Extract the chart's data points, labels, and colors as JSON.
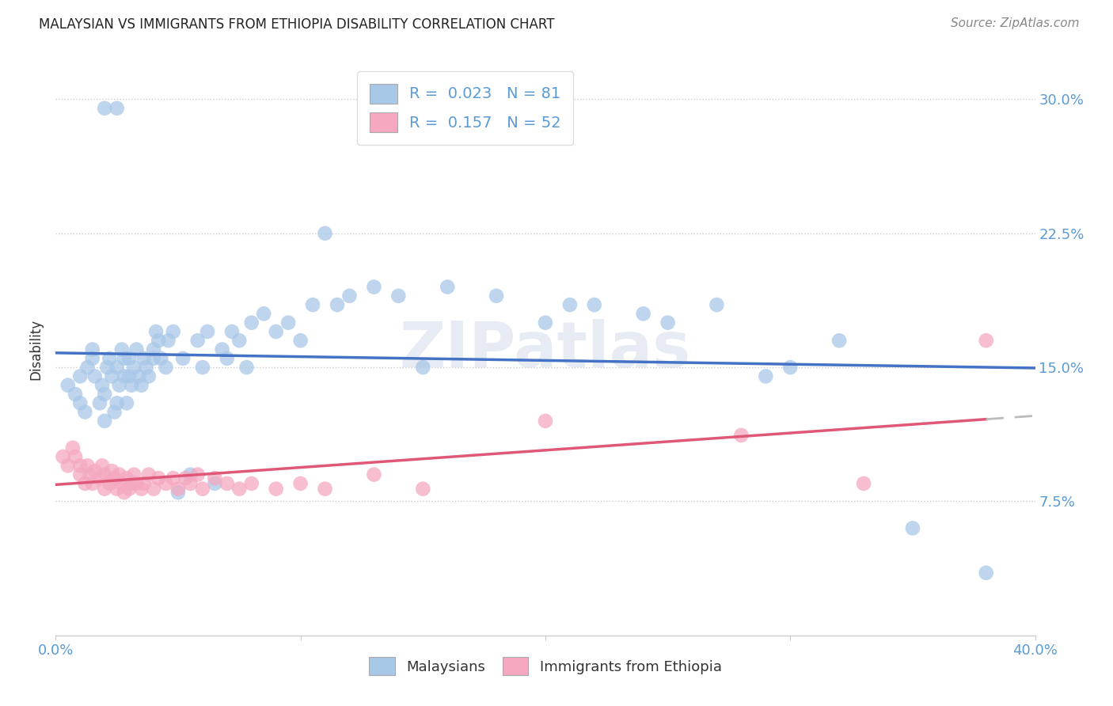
{
  "title": "MALAYSIAN VS IMMIGRANTS FROM ETHIOPIA DISABILITY CORRELATION CHART",
  "source": "Source: ZipAtlas.com",
  "ylabel": "Disability",
  "xlim": [
    0.0,
    0.4
  ],
  "ylim": [
    0.0,
    0.32
  ],
  "yticks": [
    0.075,
    0.15,
    0.225,
    0.3
  ],
  "ytick_labels": [
    "7.5%",
    "15.0%",
    "22.5%",
    "30.0%"
  ],
  "xticks": [
    0.0,
    0.1,
    0.2,
    0.3,
    0.4
  ],
  "xtick_labels": [
    "0.0%",
    "",
    "",
    "",
    "40.0%"
  ],
  "color_blue": "#A8C8E8",
  "color_pink": "#F5A8C0",
  "line_blue": "#4472C4",
  "line_pink": "#E05878",
  "watermark": "ZIPatlas",
  "malaysians_x": [
    0.005,
    0.008,
    0.01,
    0.01,
    0.012,
    0.013,
    0.015,
    0.015,
    0.016,
    0.018,
    0.019,
    0.02,
    0.02,
    0.021,
    0.022,
    0.023,
    0.024,
    0.025,
    0.025,
    0.026,
    0.027,
    0.028,
    0.028,
    0.029,
    0.03,
    0.03,
    0.031,
    0.032,
    0.033,
    0.034,
    0.035,
    0.036,
    0.037,
    0.038,
    0.04,
    0.04,
    0.041,
    0.042,
    0.043,
    0.045,
    0.046,
    0.048,
    0.05,
    0.052,
    0.055,
    0.058,
    0.06,
    0.062,
    0.065,
    0.068,
    0.07,
    0.072,
    0.075,
    0.078,
    0.08,
    0.085,
    0.09,
    0.095,
    0.1,
    0.105,
    0.11,
    0.115,
    0.12,
    0.13,
    0.14,
    0.15,
    0.16,
    0.18,
    0.2,
    0.21,
    0.22,
    0.24,
    0.25,
    0.27,
    0.29,
    0.3,
    0.32,
    0.35,
    0.38,
    0.025,
    0.02
  ],
  "malaysians_y": [
    0.14,
    0.135,
    0.13,
    0.145,
    0.125,
    0.15,
    0.155,
    0.16,
    0.145,
    0.13,
    0.14,
    0.12,
    0.135,
    0.15,
    0.155,
    0.145,
    0.125,
    0.13,
    0.15,
    0.14,
    0.16,
    0.145,
    0.155,
    0.13,
    0.155,
    0.145,
    0.14,
    0.15,
    0.16,
    0.145,
    0.14,
    0.155,
    0.15,
    0.145,
    0.16,
    0.155,
    0.17,
    0.165,
    0.155,
    0.15,
    0.165,
    0.17,
    0.08,
    0.155,
    0.09,
    0.165,
    0.15,
    0.17,
    0.085,
    0.16,
    0.155,
    0.17,
    0.165,
    0.15,
    0.175,
    0.18,
    0.17,
    0.175,
    0.165,
    0.185,
    0.225,
    0.185,
    0.19,
    0.195,
    0.19,
    0.15,
    0.195,
    0.19,
    0.175,
    0.185,
    0.185,
    0.18,
    0.175,
    0.185,
    0.145,
    0.15,
    0.165,
    0.06,
    0.035,
    0.295,
    0.295
  ],
  "ethiopia_x": [
    0.003,
    0.005,
    0.007,
    0.008,
    0.01,
    0.01,
    0.012,
    0.013,
    0.014,
    0.015,
    0.016,
    0.018,
    0.019,
    0.02,
    0.02,
    0.022,
    0.023,
    0.024,
    0.025,
    0.026,
    0.027,
    0.028,
    0.029,
    0.03,
    0.031,
    0.032,
    0.033,
    0.035,
    0.036,
    0.038,
    0.04,
    0.042,
    0.045,
    0.048,
    0.05,
    0.053,
    0.055,
    0.058,
    0.06,
    0.065,
    0.07,
    0.075,
    0.08,
    0.09,
    0.1,
    0.11,
    0.13,
    0.15,
    0.2,
    0.28,
    0.33,
    0.38
  ],
  "ethiopia_y": [
    0.1,
    0.095,
    0.105,
    0.1,
    0.09,
    0.095,
    0.085,
    0.095,
    0.09,
    0.085,
    0.092,
    0.088,
    0.095,
    0.082,
    0.09,
    0.085,
    0.092,
    0.088,
    0.082,
    0.09,
    0.085,
    0.08,
    0.088,
    0.082,
    0.085,
    0.09,
    0.085,
    0.082,
    0.085,
    0.09,
    0.082,
    0.088,
    0.085,
    0.088,
    0.082,
    0.088,
    0.085,
    0.09,
    0.082,
    0.088,
    0.085,
    0.082,
    0.085,
    0.082,
    0.085,
    0.082,
    0.09,
    0.082,
    0.12,
    0.112,
    0.085,
    0.165
  ]
}
